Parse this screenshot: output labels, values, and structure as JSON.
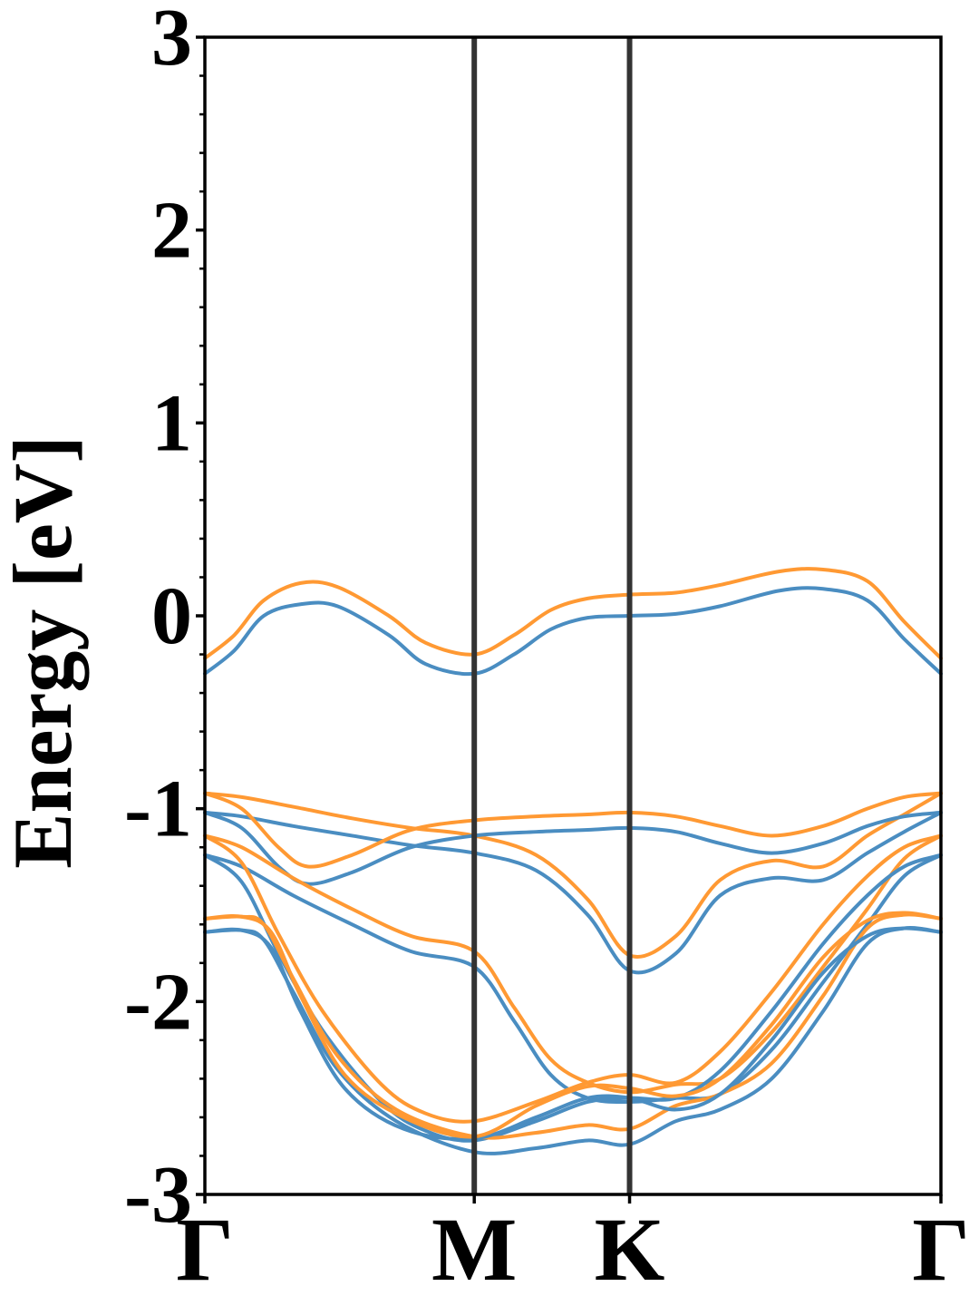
{
  "chart_data": {
    "type": "line",
    "title": "",
    "xlabel": "",
    "ylabel": "Energy [eV]",
    "ylim": [
      -3,
      3
    ],
    "xlim": [
      0,
      1
    ],
    "y_ticks": [
      {
        "value": 3,
        "label": "3"
      },
      {
        "value": 2,
        "label": "2"
      },
      {
        "value": 1,
        "label": "1"
      },
      {
        "value": 0,
        "label": "0"
      },
      {
        "value": -1,
        "label": "-1"
      },
      {
        "value": -2,
        "label": "-2"
      },
      {
        "value": -3,
        "label": "-3"
      }
    ],
    "y_minor_step": 0.2,
    "k_points": [
      {
        "label": "Γ",
        "x": 0.0
      },
      {
        "label": "M",
        "x": 0.366
      },
      {
        "label": "K",
        "x": 0.577
      },
      {
        "label": "Γ",
        "x": 1.0
      }
    ],
    "vertical_lines_at": [
      0.366,
      0.577
    ],
    "grid": false,
    "legend": "none",
    "colors": {
      "spin_a": "#4a8dc1",
      "spin_b": "#ff9933",
      "kline": "#333333"
    },
    "series": [
      {
        "color_key": "spin_a",
        "x": [
          0,
          0.04,
          0.08,
          0.13,
          0.18,
          0.25,
          0.3,
          0.366,
          0.42,
          0.47,
          0.52,
          0.577,
          0.64,
          0.7,
          0.78,
          0.84,
          0.9,
          0.95,
          1.0
        ],
        "y": [
          -0.3,
          -0.18,
          0.0,
          0.06,
          0.05,
          -0.1,
          -0.25,
          -0.3,
          -0.2,
          -0.07,
          -0.01,
          0.0,
          0.01,
          0.05,
          0.13,
          0.14,
          0.08,
          -0.12,
          -0.3
        ]
      },
      {
        "color_key": "spin_b",
        "x": [
          0,
          0.04,
          0.08,
          0.13,
          0.18,
          0.25,
          0.3,
          0.366,
          0.42,
          0.47,
          0.52,
          0.577,
          0.64,
          0.7,
          0.78,
          0.84,
          0.9,
          0.95,
          1.0
        ],
        "y": [
          -0.22,
          -0.1,
          0.08,
          0.17,
          0.15,
          0.0,
          -0.14,
          -0.2,
          -0.1,
          0.03,
          0.09,
          0.11,
          0.12,
          0.16,
          0.23,
          0.24,
          0.18,
          -0.03,
          -0.22
        ]
      },
      {
        "color_key": "spin_a",
        "x": [
          0,
          0.05,
          0.12,
          0.2,
          0.28,
          0.366,
          0.45,
          0.52,
          0.577,
          0.64,
          0.7,
          0.77,
          0.84,
          0.9,
          0.95,
          1.0
        ],
        "y": [
          -1.02,
          -1.04,
          -1.09,
          -1.14,
          -1.19,
          -1.23,
          -1.32,
          -1.55,
          -1.84,
          -1.75,
          -1.45,
          -1.36,
          -1.37,
          -1.23,
          -1.12,
          -1.02
        ]
      },
      {
        "color_key": "spin_b",
        "x": [
          0,
          0.05,
          0.12,
          0.2,
          0.28,
          0.366,
          0.45,
          0.52,
          0.577,
          0.64,
          0.7,
          0.77,
          0.84,
          0.9,
          0.95,
          1.0
        ],
        "y": [
          -0.92,
          -0.94,
          -0.99,
          -1.05,
          -1.1,
          -1.14,
          -1.24,
          -1.47,
          -1.76,
          -1.66,
          -1.37,
          -1.27,
          -1.3,
          -1.14,
          -1.03,
          -0.92
        ]
      },
      {
        "color_key": "spin_a",
        "x": [
          0,
          0.05,
          0.1,
          0.14,
          0.2,
          0.28,
          0.366,
          0.45,
          0.52,
          0.577,
          0.64,
          0.7,
          0.77,
          0.84,
          0.9,
          0.95,
          1.0
        ],
        "y": [
          -1.02,
          -1.1,
          -1.3,
          -1.39,
          -1.33,
          -1.2,
          -1.14,
          -1.12,
          -1.11,
          -1.1,
          -1.12,
          -1.18,
          -1.23,
          -1.18,
          -1.09,
          -1.04,
          -1.02
        ]
      },
      {
        "color_key": "spin_b",
        "x": [
          0,
          0.05,
          0.1,
          0.14,
          0.2,
          0.28,
          0.366,
          0.45,
          0.52,
          0.577,
          0.64,
          0.7,
          0.77,
          0.84,
          0.9,
          0.95,
          1.0
        ],
        "y": [
          -0.92,
          -1.0,
          -1.2,
          -1.3,
          -1.24,
          -1.11,
          -1.06,
          -1.04,
          -1.03,
          -1.02,
          -1.04,
          -1.09,
          -1.14,
          -1.09,
          -1.0,
          -0.94,
          -0.92
        ]
      },
      {
        "color_key": "spin_a",
        "x": [
          0,
          0.05,
          0.12,
          0.2,
          0.28,
          0.366,
          0.42,
          0.47,
          0.52,
          0.577,
          0.64,
          0.7,
          0.77,
          0.84,
          0.9,
          0.95,
          1.0
        ],
        "y": [
          -1.24,
          -1.3,
          -1.45,
          -1.6,
          -1.74,
          -1.82,
          -2.1,
          -2.38,
          -2.5,
          -2.52,
          -2.5,
          -2.48,
          -2.25,
          -1.9,
          -1.6,
          -1.35,
          -1.24
        ]
      },
      {
        "color_key": "spin_b",
        "x": [
          0,
          0.05,
          0.12,
          0.2,
          0.28,
          0.366,
          0.42,
          0.47,
          0.52,
          0.577,
          0.64,
          0.7,
          0.77,
          0.84,
          0.9,
          0.95,
          1.0
        ],
        "y": [
          -1.14,
          -1.2,
          -1.36,
          -1.52,
          -1.66,
          -1.74,
          -2.03,
          -2.3,
          -2.42,
          -2.47,
          -2.43,
          -2.4,
          -2.16,
          -1.82,
          -1.52,
          -1.26,
          -1.14
        ]
      },
      {
        "color_key": "spin_a",
        "x": [
          0,
          0.05,
          0.1,
          0.16,
          0.24,
          0.3,
          0.366,
          0.45,
          0.52,
          0.577,
          0.64,
          0.7,
          0.77,
          0.84,
          0.9,
          0.95,
          1.0
        ],
        "y": [
          -1.24,
          -1.38,
          -1.75,
          -2.15,
          -2.52,
          -2.67,
          -2.72,
          -2.62,
          -2.52,
          -2.5,
          -2.5,
          -2.36,
          -2.05,
          -1.7,
          -1.45,
          -1.3,
          -1.24
        ]
      },
      {
        "color_key": "spin_b",
        "x": [
          0,
          0.05,
          0.1,
          0.16,
          0.24,
          0.3,
          0.366,
          0.45,
          0.52,
          0.577,
          0.64,
          0.7,
          0.77,
          0.84,
          0.9,
          0.95,
          1.0
        ],
        "y": [
          -1.14,
          -1.28,
          -1.65,
          -2.05,
          -2.43,
          -2.58,
          -2.62,
          -2.52,
          -2.42,
          -2.38,
          -2.42,
          -2.26,
          -1.95,
          -1.6,
          -1.35,
          -1.2,
          -1.14
        ]
      },
      {
        "color_key": "spin_a",
        "x": [
          0,
          0.05,
          0.08,
          0.12,
          0.18,
          0.26,
          0.366,
          0.45,
          0.52,
          0.577,
          0.64,
          0.7,
          0.77,
          0.84,
          0.9,
          0.95,
          1.0
        ],
        "y": [
          -1.64,
          -1.63,
          -1.68,
          -1.95,
          -2.35,
          -2.62,
          -2.78,
          -2.76,
          -2.72,
          -2.74,
          -2.62,
          -2.56,
          -2.4,
          -2.05,
          -1.7,
          -1.62,
          -1.64
        ]
      },
      {
        "color_key": "spin_b",
        "x": [
          0,
          0.05,
          0.08,
          0.12,
          0.18,
          0.26,
          0.366,
          0.45,
          0.52,
          0.577,
          0.64,
          0.7,
          0.77,
          0.84,
          0.9,
          0.95,
          1.0
        ],
        "y": [
          -1.57,
          -1.56,
          -1.6,
          -1.88,
          -2.28,
          -2.56,
          -2.7,
          -2.68,
          -2.64,
          -2.66,
          -2.54,
          -2.48,
          -2.32,
          -1.97,
          -1.62,
          -1.55,
          -1.57
        ]
      },
      {
        "color_key": "spin_a",
        "x": [
          0,
          0.05,
          0.09,
          0.13,
          0.19,
          0.27,
          0.366,
          0.45,
          0.52,
          0.577,
          0.64,
          0.7,
          0.77,
          0.84,
          0.9,
          0.95,
          1.0
        ],
        "y": [
          -1.64,
          -1.63,
          -1.72,
          -2.05,
          -2.45,
          -2.66,
          -2.71,
          -2.6,
          -2.5,
          -2.5,
          -2.56,
          -2.48,
          -2.2,
          -1.85,
          -1.66,
          -1.62,
          -1.64
        ]
      },
      {
        "color_key": "spin_b",
        "x": [
          0,
          0.05,
          0.09,
          0.13,
          0.19,
          0.27,
          0.366,
          0.45,
          0.52,
          0.577,
          0.64,
          0.7,
          0.77,
          0.84,
          0.9,
          0.95,
          1.0
        ],
        "y": [
          -1.57,
          -1.56,
          -1.64,
          -1.97,
          -2.38,
          -2.6,
          -2.7,
          -2.54,
          -2.44,
          -2.45,
          -2.49,
          -2.4,
          -2.12,
          -1.77,
          -1.58,
          -1.54,
          -1.57
        ]
      }
    ]
  }
}
